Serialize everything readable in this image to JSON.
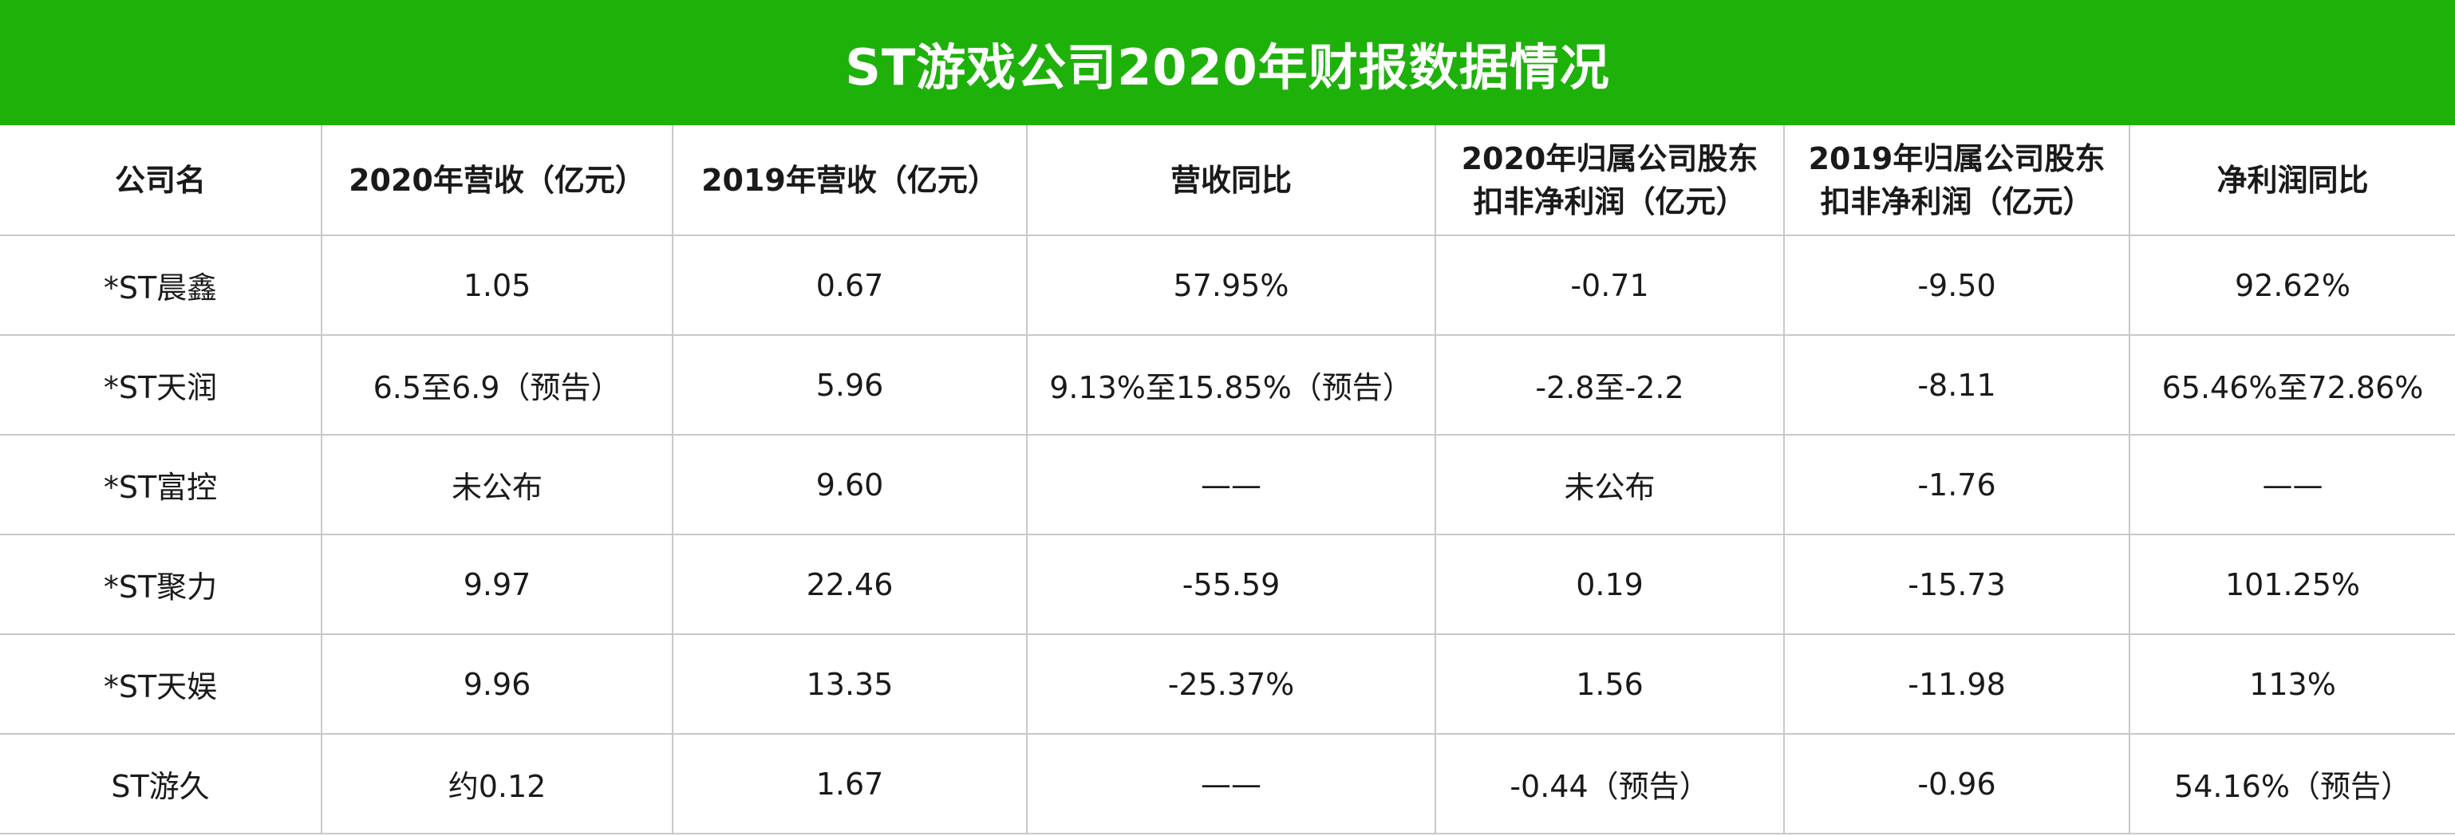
{
  "title": "ST游戏公司2020年财报数据情况",
  "colors": {
    "header_bg": "#1eb10a",
    "header_text": "#ffffff",
    "grid_line": "#c8c8c8"
  },
  "table": {
    "headers": [
      [
        "公司名"
      ],
      [
        "2020年营收（亿元）"
      ],
      [
        "2019年营收（亿元）"
      ],
      [
        "营收同比"
      ],
      [
        "2020年归属公司股东",
        "扣非净利润（亿元）"
      ],
      [
        "2019年归属公司股东",
        "扣非净利润（亿元）"
      ],
      [
        "净利润同比"
      ]
    ],
    "rows": [
      [
        "*ST晨鑫",
        "1.05",
        "0.67",
        "57.95%",
        "-0.71",
        "-9.50",
        "92.62%"
      ],
      [
        "*ST天润",
        "6.5至6.9（预告）",
        "5.96",
        "9.13%至15.85%（预告）",
        "-2.8至-2.2",
        "-8.11",
        "65.46%至72.86%"
      ],
      [
        "*ST富控",
        "未公布",
        "9.60",
        "——",
        "未公布",
        "-1.76",
        "——"
      ],
      [
        "*ST聚力",
        "9.97",
        "22.46",
        "-55.59",
        "0.19",
        "-15.73",
        "101.25%"
      ],
      [
        "*ST天娱",
        "9.96",
        "13.35",
        "-25.37%",
        "1.56",
        "-11.98",
        "113%"
      ],
      [
        "ST游久",
        "约0.12",
        "1.67",
        "——",
        "-0.44（预告）",
        "-0.96",
        "54.16%（预告）"
      ]
    ]
  }
}
